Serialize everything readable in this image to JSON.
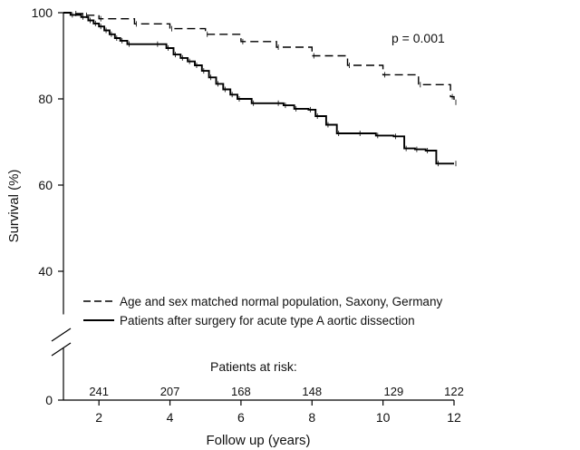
{
  "chart_data": {
    "type": "line",
    "xlabel": "Follow up (years)",
    "ylabel": "Survival (%)",
    "annotation": "p = 0.001",
    "x_ticks": [
      2,
      4,
      6,
      8,
      10,
      12
    ],
    "y_ticks": [
      0,
      40,
      60,
      80,
      100
    ],
    "xlim": [
      1,
      12
    ],
    "ylim_upper": [
      30,
      100
    ],
    "y_axis_break": true,
    "grid": false,
    "legend_position": "bottom-left",
    "risk_table": {
      "label": "Patients at risk:",
      "x": [
        2,
        4,
        6,
        8,
        10.3,
        12
      ],
      "values": [
        "241",
        "207",
        "168",
        "148",
        "129",
        "122"
      ]
    },
    "series": [
      {
        "name": "Age and sex matched normal population, Saxony, Germany",
        "style": "dashed",
        "x": [
          1,
          1.3,
          1.6,
          2.0,
          3.0,
          4.0,
          5.0,
          6.0,
          7.0,
          8.0,
          9.0,
          10.0,
          11.0,
          11.9,
          12.0
        ],
        "y": [
          100,
          99.8,
          99.4,
          98.6,
          97.4,
          96.3,
          95.0,
          93.3,
          92.0,
          90.0,
          87.8,
          85.6,
          83.3,
          80.5,
          79.2
        ]
      },
      {
        "name": "Patients after surgery for acute type A aortic dissection",
        "style": "solid",
        "x": [
          1,
          1.2,
          1.5,
          1.7,
          1.85,
          2.0,
          2.15,
          2.3,
          2.45,
          2.6,
          2.8,
          3.6,
          3.9,
          4.1,
          4.3,
          4.5,
          4.7,
          4.9,
          5.1,
          5.3,
          5.5,
          5.7,
          5.9,
          6.3,
          7.0,
          7.2,
          7.5,
          7.9,
          8.1,
          8.4,
          8.7,
          9.3,
          9.8,
          10.3,
          10.6,
          10.9,
          11.2,
          11.5,
          12.0
        ],
        "y": [
          100,
          99.5,
          99.0,
          98.2,
          97.5,
          96.8,
          95.9,
          95.0,
          94.1,
          93.5,
          92.7,
          92.7,
          91.8,
          90.3,
          89.5,
          88.7,
          87.8,
          86.5,
          85.0,
          83.5,
          82.2,
          81.0,
          80.0,
          79.0,
          79.0,
          78.5,
          77.7,
          77.5,
          76.0,
          74.0,
          72.0,
          72.0,
          71.5,
          71.3,
          68.5,
          68.3,
          68.0,
          65.0,
          65.0
        ]
      }
    ]
  }
}
